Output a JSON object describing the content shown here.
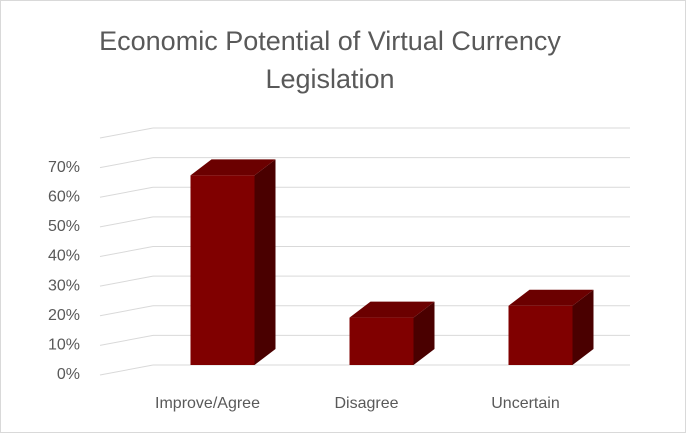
{
  "chart_data": {
    "type": "bar3d",
    "title": "Economic Potential of Virtual Currency Legislation",
    "categories": [
      "Improve/Agree",
      "Disagree",
      "Uncertain"
    ],
    "values": [
      64,
      16,
      20
    ],
    "color": "#800000",
    "ylim": [
      0,
      80
    ],
    "yticks": [
      {
        "value": 0,
        "label": "0%"
      },
      {
        "value": 10,
        "label": "10%"
      },
      {
        "value": 20,
        "label": "20%"
      },
      {
        "value": 30,
        "label": "30%"
      },
      {
        "value": 40,
        "label": "40%"
      },
      {
        "value": 50,
        "label": "50%"
      },
      {
        "value": 60,
        "label": "60%"
      },
      {
        "value": 70,
        "label": "70%"
      }
    ],
    "grid": true
  }
}
